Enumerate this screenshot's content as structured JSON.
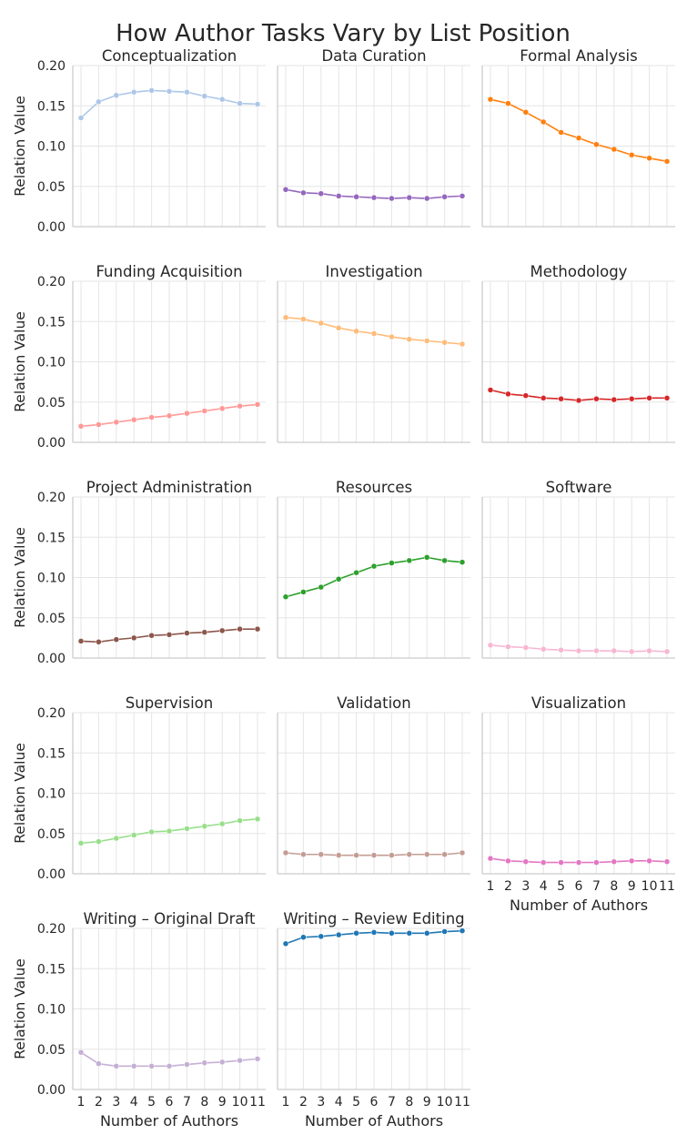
{
  "chart_data": {
    "type": "line",
    "title": "How Author Tasks Vary by List Position",
    "xlabel": "Number of Authors",
    "ylabel": "Relation Value",
    "x": [
      1,
      2,
      3,
      4,
      5,
      6,
      7,
      8,
      9,
      10,
      11
    ],
    "x_tick_labels": [
      "1",
      "2",
      "3",
      "4",
      "5",
      "6",
      "7",
      "8",
      "9",
      "10",
      "11"
    ],
    "ylim": [
      0,
      0.2
    ],
    "y_ticks": [
      "0.00",
      "0.05",
      "0.10",
      "0.15",
      "0.20"
    ],
    "grid": true,
    "panels": [
      {
        "name": "Conceptualization",
        "color": "#aec7e8",
        "values": [
          0.135,
          0.155,
          0.163,
          0.167,
          0.169,
          0.168,
          0.167,
          0.162,
          0.158,
          0.153,
          0.152
        ]
      },
      {
        "name": "Data Curation",
        "color": "#9467bd",
        "values": [
          0.046,
          0.042,
          0.041,
          0.038,
          0.037,
          0.036,
          0.035,
          0.036,
          0.035,
          0.037,
          0.038
        ]
      },
      {
        "name": "Formal Analysis",
        "color": "#ff7f0e",
        "values": [
          0.158,
          0.153,
          0.142,
          0.13,
          0.117,
          0.11,
          0.102,
          0.096,
          0.089,
          0.085,
          0.081
        ]
      },
      {
        "name": "Funding Acquisition",
        "color": "#ff9896",
        "values": [
          0.02,
          0.022,
          0.025,
          0.028,
          0.031,
          0.033,
          0.036,
          0.039,
          0.042,
          0.045,
          0.047
        ]
      },
      {
        "name": "Investigation",
        "color": "#ffbb78",
        "values": [
          0.155,
          0.153,
          0.148,
          0.142,
          0.138,
          0.135,
          0.131,
          0.128,
          0.126,
          0.124,
          0.122
        ]
      },
      {
        "name": "Methodology",
        "color": "#d62728",
        "values": [
          0.065,
          0.06,
          0.058,
          0.055,
          0.054,
          0.052,
          0.054,
          0.053,
          0.054,
          0.055,
          0.055
        ]
      },
      {
        "name": "Project Administration",
        "color": "#8c564b",
        "values": [
          0.021,
          0.02,
          0.023,
          0.025,
          0.028,
          0.029,
          0.031,
          0.032,
          0.034,
          0.036,
          0.036
        ]
      },
      {
        "name": "Resources",
        "color": "#2ca02c",
        "values": [
          0.076,
          0.082,
          0.088,
          0.098,
          0.106,
          0.114,
          0.118,
          0.121,
          0.125,
          0.121,
          0.119
        ]
      },
      {
        "name": "Software",
        "color": "#f7b6d2",
        "values": [
          0.016,
          0.014,
          0.013,
          0.011,
          0.01,
          0.009,
          0.009,
          0.009,
          0.008,
          0.009,
          0.008
        ]
      },
      {
        "name": "Supervision",
        "color": "#98df8a",
        "values": [
          0.038,
          0.04,
          0.044,
          0.048,
          0.052,
          0.053,
          0.056,
          0.059,
          0.062,
          0.066,
          0.068
        ]
      },
      {
        "name": "Validation",
        "color": "#c49c94",
        "values": [
          0.026,
          0.024,
          0.024,
          0.023,
          0.023,
          0.023,
          0.023,
          0.024,
          0.024,
          0.024,
          0.026
        ]
      },
      {
        "name": "Visualization",
        "color": "#e377c2",
        "values": [
          0.019,
          0.016,
          0.015,
          0.014,
          0.014,
          0.014,
          0.014,
          0.015,
          0.016,
          0.016,
          0.015
        ]
      },
      {
        "name": "Writing – Original Draft",
        "color": "#c5b0d5",
        "values": [
          0.046,
          0.032,
          0.029,
          0.029,
          0.029,
          0.029,
          0.031,
          0.033,
          0.034,
          0.036,
          0.038
        ]
      },
      {
        "name": "Writing – Review Editing",
        "color": "#1f77b4",
        "values": [
          0.181,
          0.189,
          0.19,
          0.192,
          0.194,
          0.195,
          0.194,
          0.194,
          0.194,
          0.196,
          0.197
        ]
      }
    ]
  }
}
